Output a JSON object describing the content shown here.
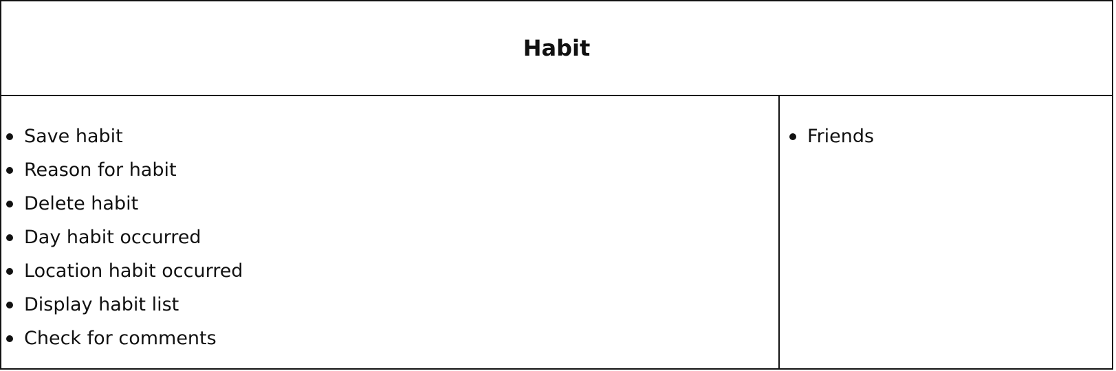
{
  "header": {
    "title": "Habit"
  },
  "left_column": {
    "items": [
      {
        "label": "Save habit"
      },
      {
        "label": "Reason for habit"
      },
      {
        "label": "Delete habit"
      },
      {
        "label": "Day habit occurred"
      },
      {
        "label": "Location habit occurred"
      },
      {
        "label": "Display habit list"
      },
      {
        "label": "Check for comments"
      }
    ]
  },
  "right_column": {
    "items": [
      {
        "label": "Friends"
      }
    ]
  },
  "colors": {
    "border": "#111111",
    "text": "#111111",
    "background": "#ffffff"
  }
}
